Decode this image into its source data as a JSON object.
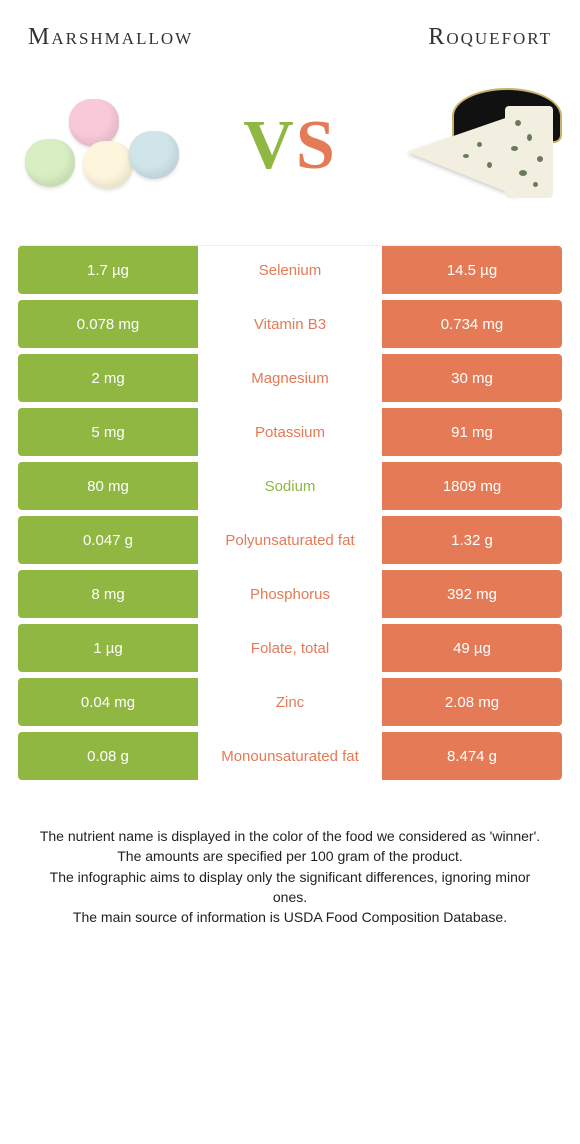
{
  "colors": {
    "left": "#8fb741",
    "right": "#e47a56",
    "row_bg": "#ffffff",
    "text": "#222222"
  },
  "title_left": "Marshmallow",
  "title_right": "Roquefort",
  "vs": {
    "v": "V",
    "s": "S"
  },
  "rows": [
    {
      "left": "1.7 µg",
      "label": "Selenium",
      "right": "14.5 µg",
      "winner": "right"
    },
    {
      "left": "0.078 mg",
      "label": "Vitamin B3",
      "right": "0.734 mg",
      "winner": "right"
    },
    {
      "left": "2 mg",
      "label": "Magnesium",
      "right": "30 mg",
      "winner": "right"
    },
    {
      "left": "5 mg",
      "label": "Potassium",
      "right": "91 mg",
      "winner": "right"
    },
    {
      "left": "80 mg",
      "label": "Sodium",
      "right": "1809 mg",
      "winner": "left"
    },
    {
      "left": "0.047 g",
      "label": "Polyunsaturated fat",
      "right": "1.32 g",
      "winner": "right"
    },
    {
      "left": "8 mg",
      "label": "Phosphorus",
      "right": "392 mg",
      "winner": "right"
    },
    {
      "left": "1 µg",
      "label": "Folate, total",
      "right": "49 µg",
      "winner": "right"
    },
    {
      "left": "0.04 mg",
      "label": "Zinc",
      "right": "2.08 mg",
      "winner": "right"
    },
    {
      "left": "0.08 g",
      "label": "Monounsaturated fat",
      "right": "8.474 g",
      "winner": "right"
    }
  ],
  "footer": [
    "The nutrient name is displayed in the color of the food we considered as 'winner'.",
    "The amounts are specified per 100 gram of the product.",
    "The infographic aims to display only the significant differences, ignoring minor ones.",
    "The main source of information is USDA Food Composition Database."
  ]
}
